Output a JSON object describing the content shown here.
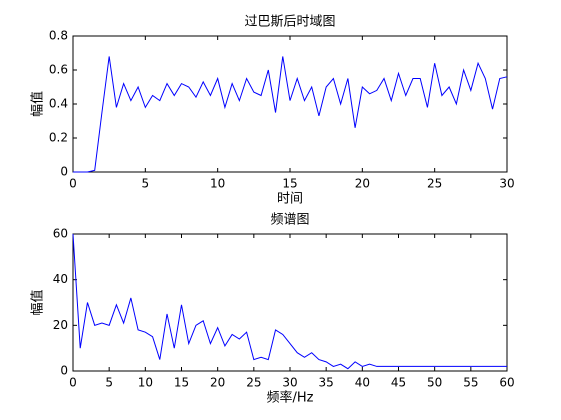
{
  "chart_data": [
    {
      "type": "line",
      "title": "过巴斯后时域图",
      "xlabel": "时间",
      "ylabel": "幅值",
      "x": [
        0,
        0.5,
        1,
        1.5,
        2,
        2.5,
        3,
        3.5,
        4,
        4.5,
        5,
        5.5,
        6,
        6.5,
        7,
        7.5,
        8,
        8.5,
        9,
        9.5,
        10,
        10.5,
        11,
        11.5,
        12,
        12.5,
        13,
        13.5,
        14,
        14.5,
        15,
        15.5,
        16,
        16.5,
        17,
        17.5,
        18,
        18.5,
        19,
        19.5,
        20,
        20.5,
        21,
        21.5,
        22,
        22.5,
        23,
        23.5,
        24,
        24.5,
        25,
        25.5,
        26,
        26.5,
        27,
        27.5,
        28,
        28.5,
        29,
        29.5,
        30
      ],
      "series": [
        {
          "color": "#0000ff",
          "values": [
            0,
            0,
            0,
            0.01,
            0.35,
            0.68,
            0.38,
            0.52,
            0.42,
            0.5,
            0.38,
            0.45,
            0.42,
            0.52,
            0.45,
            0.52,
            0.5,
            0.44,
            0.53,
            0.45,
            0.55,
            0.38,
            0.52,
            0.42,
            0.55,
            0.47,
            0.45,
            0.6,
            0.35,
            0.68,
            0.42,
            0.55,
            0.42,
            0.5,
            0.33,
            0.5,
            0.55,
            0.4,
            0.55,
            0.26,
            0.5,
            0.46,
            0.48,
            0.55,
            0.42,
            0.58,
            0.45,
            0.55,
            0.55,
            0.38,
            0.64,
            0.45,
            0.5,
            0.4,
            0.6,
            0.48,
            0.64,
            0.55,
            0.37,
            0.55,
            0.56
          ]
        }
      ],
      "xlim": [
        0,
        30
      ],
      "xticks": [
        0,
        5,
        10,
        15,
        20,
        25,
        30
      ],
      "ylim": [
        0,
        0.8
      ],
      "yticks": [
        0,
        0.2,
        0.4,
        0.6,
        0.8
      ]
    },
    {
      "type": "line",
      "title": "频谱图",
      "xlabel": "频率/Hz",
      "ylabel": "幅值",
      "x": [
        0,
        1,
        2,
        3,
        4,
        5,
        6,
        7,
        8,
        9,
        10,
        11,
        12,
        13,
        14,
        15,
        16,
        17,
        18,
        19,
        20,
        21,
        22,
        23,
        24,
        25,
        26,
        27,
        28,
        29,
        30,
        31,
        32,
        33,
        34,
        35,
        36,
        37,
        38,
        39,
        40,
        41,
        42,
        43,
        44,
        45,
        46,
        47,
        48,
        49,
        50,
        51,
        52,
        53,
        54,
        55,
        56,
        57,
        58,
        59,
        60
      ],
      "series": [
        {
          "color": "#0000ff",
          "values": [
            60,
            10,
            30,
            20,
            21,
            20,
            29,
            21,
            32,
            18,
            17,
            15,
            5,
            25,
            10,
            29,
            12,
            20,
            22,
            12,
            19,
            11,
            16,
            14,
            17,
            5,
            6,
            5,
            18,
            16,
            12,
            8,
            6,
            8,
            5,
            4,
            2,
            3,
            1,
            4,
            2,
            3,
            2,
            2,
            2,
            2,
            2,
            2,
            2,
            2,
            2,
            2,
            2,
            2,
            2,
            2,
            2,
            2,
            2,
            2,
            2
          ]
        }
      ],
      "xlim": [
        0,
        60
      ],
      "xticks": [
        0,
        5,
        10,
        15,
        20,
        25,
        30,
        35,
        40,
        45,
        50,
        55,
        60
      ],
      "ylim": [
        0,
        60
      ],
      "yticks": [
        0,
        20,
        40,
        60
      ]
    }
  ]
}
